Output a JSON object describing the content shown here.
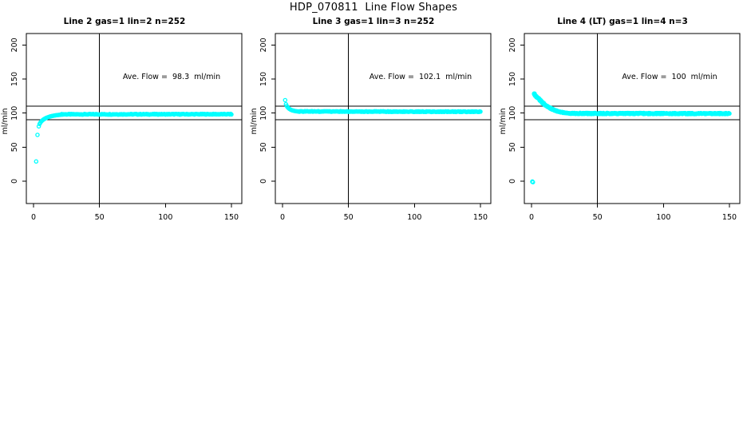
{
  "header": {
    "title": "HDP_070811  Line Flow Shapes"
  },
  "chart_data": {
    "type": "scatter",
    "point_color": "#00ffff",
    "axis_color": "#000000",
    "background": "#ffffff",
    "xlim": [
      -5.5,
      158
    ],
    "ylim": [
      -33,
      217
    ],
    "x_ticks": [
      0,
      50,
      100,
      150
    ],
    "y_ticks": [
      0,
      50,
      100,
      150,
      200
    ],
    "xlabel": "",
    "ylabel": "ml/min",
    "grid": false,
    "legend": "none",
    "ref_lines_y": [
      110,
      90
    ],
    "ref_line_x": 50,
    "panels": [
      {
        "title": "Line 2 gas=1 lin=2 n=252",
        "annotation": "Ave. Flow =  98.3  ml/min",
        "ave_flow_ml_min": 98.3,
        "n": 252,
        "runs": 1,
        "transient": [
          [
            2,
            29
          ],
          [
            3,
            68
          ],
          [
            4,
            80.5
          ],
          [
            4.6,
            84
          ],
          [
            5.2,
            86
          ],
          [
            5.8,
            87.6
          ],
          [
            6.4,
            88.8
          ],
          [
            7,
            89.8
          ],
          [
            7.6,
            90.7
          ],
          [
            8.2,
            91.4
          ],
          [
            8.8,
            92.1
          ],
          [
            9.4,
            92.7
          ],
          [
            10,
            93.2
          ],
          [
            10.6,
            93.7
          ],
          [
            11.2,
            94.1
          ],
          [
            11.8,
            94.5
          ],
          [
            12.4,
            94.9
          ],
          [
            13,
            95.2
          ],
          [
            13.6,
            95.5
          ],
          [
            14.2,
            95.8
          ],
          [
            14.8,
            96.0
          ],
          [
            15.4,
            96.3
          ],
          [
            16,
            96.5
          ],
          [
            16.6,
            96.7
          ],
          [
            17.2,
            96.9
          ],
          [
            17.8,
            97.0
          ],
          [
            18.4,
            97.2
          ],
          [
            19,
            97.3
          ],
          [
            19.6,
            97.4
          ],
          [
            20.2,
            97.5
          ]
        ],
        "steady": {
          "x_start": 20.8,
          "x_end": 150,
          "y_start": 98.2,
          "y_end": 98.4,
          "n_points": 218,
          "jitter": 0.55
        }
      },
      {
        "title": "Line 3 gas=1 lin=3 n=252",
        "annotation": "Ave. Flow =  102.1  ml/min",
        "ave_flow_ml_min": 102.1,
        "n": 252,
        "runs": 1,
        "transient": [
          [
            2,
            119
          ],
          [
            2.6,
            113
          ],
          [
            3.2,
            110.5
          ],
          [
            3.8,
            108.8
          ],
          [
            4.4,
            107.5
          ],
          [
            5,
            106.5
          ],
          [
            5.6,
            105.7
          ],
          [
            6.2,
            105
          ],
          [
            6.8,
            104.5
          ],
          [
            7.4,
            104
          ],
          [
            8,
            103.7
          ],
          [
            8.6,
            103.4
          ],
          [
            9.2,
            103.1
          ],
          [
            9.8,
            102.9
          ],
          [
            10.4,
            102.7
          ],
          [
            11,
            102.6
          ],
          [
            11.6,
            102.5
          ],
          [
            12.2,
            102.4
          ]
        ],
        "steady": {
          "x_start": 12.8,
          "x_end": 150,
          "y_start": 102.4,
          "y_end": 102.0,
          "n_points": 230,
          "jitter": 0.5
        }
      },
      {
        "title": "Line 4 (LT) gas=1 lin=4 n=3",
        "annotation": "Ave. Flow =  100  ml/min",
        "ave_flow_ml_min": 100,
        "n": 3,
        "runs": 3,
        "transient": [
          [
            1,
            -1
          ],
          [
            2,
            128
          ],
          [
            2.5,
            127
          ],
          [
            3,
            126
          ],
          [
            3.5,
            125
          ],
          [
            4,
            124
          ],
          [
            4.5,
            123
          ],
          [
            5,
            122
          ],
          [
            5.5,
            121
          ],
          [
            6,
            120
          ],
          [
            6.5,
            119
          ],
          [
            7,
            118
          ],
          [
            7.5,
            117
          ],
          [
            8,
            116.1
          ],
          [
            8.5,
            115.2
          ],
          [
            9,
            114.3
          ],
          [
            9.5,
            113.5
          ],
          [
            10,
            112.7
          ],
          [
            10.5,
            111.9
          ],
          [
            11,
            111.2
          ],
          [
            11.5,
            110.5
          ],
          [
            12,
            109.8
          ],
          [
            12.5,
            109.2
          ],
          [
            13,
            108.6
          ],
          [
            13.5,
            108
          ],
          [
            14,
            107.4
          ],
          [
            14.5,
            106.9
          ],
          [
            15,
            106.4
          ],
          [
            15.5,
            105.9
          ],
          [
            16,
            105.4
          ],
          [
            16.5,
            105
          ],
          [
            17,
            104.6
          ],
          [
            17.5,
            104.2
          ],
          [
            18,
            103.8
          ],
          [
            18.5,
            103.4
          ],
          [
            19,
            103.1
          ],
          [
            19.5,
            102.8
          ],
          [
            20,
            102.5
          ],
          [
            21,
            102
          ],
          [
            22,
            101.5
          ],
          [
            23,
            101.1
          ],
          [
            24,
            100.7
          ],
          [
            25,
            100.4
          ],
          [
            26,
            100.1
          ],
          [
            27,
            99.9
          ],
          [
            28,
            99.7
          ],
          [
            29,
            99.5
          ],
          [
            30,
            99.4
          ]
        ],
        "steady": {
          "x_start": 30.5,
          "x_end": 150,
          "y_start": 99.5,
          "y_end": 99.2,
          "n_points": 360,
          "jitter": 0.85
        }
      }
    ]
  }
}
